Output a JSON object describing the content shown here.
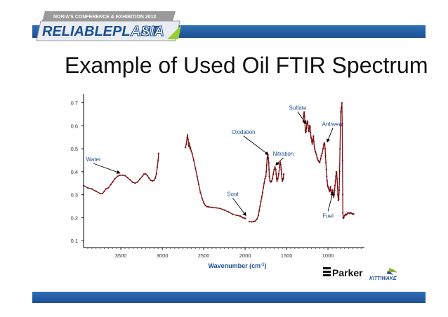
{
  "slide": {
    "title": "Example of Used Oil FTIR Spectrum",
    "banner": {
      "line1": "NORIA'S CONFERENCE & EXHIBITION 2012",
      "word1": "RELIABLEPLANT",
      "word2": "ASIA"
    },
    "logos": {
      "parker": "Parker",
      "kittiwake": "KITTIWAKE"
    },
    "colors": {
      "bar": "#2f6fb8",
      "series": "#7a0f12",
      "banner_gray": "#9a9a9a",
      "banner_blue": "#1d4f8f",
      "banner_green": "#9acd32"
    }
  },
  "chart_data": {
    "type": "line",
    "xlabel": "Wavenumber (cm",
    "xlabel_sup": "-1",
    "xlabel_close": ")",
    "xlim": [
      3950,
      560
    ],
    "ylim": [
      0.07,
      0.72
    ],
    "x_ticks": [
      3500,
      3000,
      2500,
      2000,
      1500,
      1000
    ],
    "y_ticks": [
      0.1,
      0.2,
      0.3,
      0.4,
      0.5,
      0.6,
      0.7
    ],
    "grid": false,
    "series": [
      {
        "segments": [
          [
            [
              3950,
              0.34
            ],
            [
              3900,
              0.33
            ],
            [
              3850,
              0.325
            ],
            [
              3800,
              0.315
            ],
            [
              3750,
              0.305
            ],
            [
              3720,
              0.305
            ],
            [
              3700,
              0.315
            ],
            [
              3680,
              0.325
            ],
            [
              3650,
              0.33
            ],
            [
              3620,
              0.345
            ],
            [
              3600,
              0.355
            ],
            [
              3570,
              0.37
            ],
            [
              3540,
              0.38
            ],
            [
              3510,
              0.385
            ],
            [
              3480,
              0.385
            ],
            [
              3450,
              0.383
            ],
            [
              3420,
              0.375
            ],
            [
              3390,
              0.365
            ],
            [
              3360,
              0.355
            ],
            [
              3330,
              0.35
            ],
            [
              3300,
              0.355
            ],
            [
              3270,
              0.368
            ],
            [
              3240,
              0.38
            ],
            [
              3220,
              0.39
            ],
            [
              3200,
              0.39
            ],
            [
              3180,
              0.383
            ],
            [
              3160,
              0.372
            ],
            [
              3140,
              0.363
            ],
            [
              3120,
              0.36
            ],
            [
              3100,
              0.362
            ],
            [
              3085,
              0.372
            ],
            [
              3070,
              0.392
            ],
            [
              3060,
              0.42
            ],
            [
              3050,
              0.45
            ],
            [
              3045,
              0.48
            ]
          ],
          [
            [
              2720,
              0.505
            ],
            [
              2710,
              0.52
            ],
            [
              2700,
              0.55
            ],
            [
              2695,
              0.56
            ],
            [
              2688,
              0.54
            ],
            [
              2680,
              0.51
            ],
            [
              2675,
              0.525
            ],
            [
              2670,
              0.515
            ],
            [
              2665,
              0.5
            ],
            [
              2660,
              0.505
            ],
            [
              2650,
              0.49
            ],
            [
              2640,
              0.48
            ],
            [
              2620,
              0.45
            ],
            [
              2600,
              0.415
            ],
            [
              2580,
              0.38
            ],
            [
              2560,
              0.345
            ],
            [
              2540,
              0.31
            ],
            [
              2520,
              0.285
            ],
            [
              2500,
              0.265
            ],
            [
              2480,
              0.253
            ],
            [
              2460,
              0.248
            ],
            [
              2440,
              0.247
            ],
            [
              2400,
              0.245
            ],
            [
              2350,
              0.243
            ],
            [
              2300,
              0.24
            ],
            [
              2250,
              0.233
            ],
            [
              2200,
              0.225
            ],
            [
              2150,
              0.215
            ],
            [
              2100,
              0.21
            ],
            [
              2060,
              0.207
            ],
            [
              2050,
              0.205
            ],
            [
              2030,
              0.2
            ],
            [
              2010,
              0.198
            ],
            [
              2000,
              0.197
            ]
          ],
          [
            [
              1950,
              0.183
            ],
            [
              1920,
              0.182
            ],
            [
              1900,
              0.183
            ],
            [
              1880,
              0.185
            ],
            [
              1860,
              0.192
            ],
            [
              1840,
              0.21
            ],
            [
              1830,
              0.23
            ],
            [
              1820,
              0.25
            ],
            [
              1810,
              0.27
            ],
            [
              1800,
              0.29
            ],
            [
              1790,
              0.31
            ],
            [
              1780,
              0.33
            ],
            [
              1770,
              0.35
            ],
            [
              1760,
              0.37
            ],
            [
              1750,
              0.38
            ],
            [
              1745,
              0.4
            ],
            [
              1740,
              0.43
            ],
            [
              1735,
              0.455
            ],
            [
              1730,
              0.465
            ],
            [
              1725,
              0.47
            ],
            [
              1720,
              0.46
            ],
            [
              1715,
              0.44
            ],
            [
              1712,
              0.41
            ],
            [
              1708,
              0.38
            ],
            [
              1700,
              0.36
            ],
            [
              1690,
              0.355
            ],
            [
              1680,
              0.36
            ],
            [
              1670,
              0.37
            ],
            [
              1660,
              0.39
            ],
            [
              1650,
              0.41
            ],
            [
              1640,
              0.42
            ],
            [
              1630,
              0.41
            ],
            [
              1625,
              0.39
            ],
            [
              1620,
              0.37
            ],
            [
              1615,
              0.36
            ],
            [
              1605,
              0.37
            ],
            [
              1595,
              0.39
            ],
            [
              1585,
              0.42
            ],
            [
              1580,
              0.435
            ],
            [
              1575,
              0.44
            ],
            [
              1570,
              0.43
            ],
            [
              1565,
              0.41
            ],
            [
              1560,
              0.39
            ],
            [
              1555,
              0.37
            ],
            [
              1550,
              0.36
            ],
            [
              1545,
              0.365
            ],
            [
              1540,
              0.37
            ],
            [
              1535,
              0.39
            ]
          ],
          [
            [
              1300,
              0.62
            ],
            [
              1295,
              0.64
            ],
            [
              1290,
              0.655
            ],
            [
              1286,
              0.66
            ],
            [
              1282,
              0.64
            ],
            [
              1278,
              0.61
            ],
            [
              1274,
              0.58
            ],
            [
              1270,
              0.57
            ],
            [
              1265,
              0.575
            ],
            [
              1260,
              0.59
            ],
            [
              1255,
              0.61
            ],
            [
              1250,
              0.62
            ],
            [
              1245,
              0.615
            ],
            [
              1240,
              0.6
            ],
            [
              1235,
              0.58
            ],
            [
              1230,
              0.575
            ],
            [
              1225,
              0.59
            ],
            [
              1220,
              0.6
            ],
            [
              1215,
              0.595
            ],
            [
              1210,
              0.57
            ],
            [
              1205,
              0.55
            ],
            [
              1200,
              0.545
            ],
            [
              1195,
              0.53
            ],
            [
              1190,
              0.52
            ],
            [
              1185,
              0.535
            ],
            [
              1180,
              0.54
            ],
            [
              1175,
              0.555
            ],
            [
              1170,
              0.53
            ],
            [
              1165,
              0.51
            ],
            [
              1160,
              0.5
            ],
            [
              1155,
              0.49
            ],
            [
              1150,
              0.485
            ],
            [
              1140,
              0.475
            ],
            [
              1130,
              0.46
            ],
            [
              1120,
              0.45
            ],
            [
              1110,
              0.445
            ],
            [
              1100,
              0.44
            ],
            [
              1090,
              0.455
            ],
            [
              1080,
              0.47
            ],
            [
              1070,
              0.48
            ],
            [
              1060,
              0.5
            ],
            [
              1050,
              0.52
            ],
            [
              1045,
              0.525
            ],
            [
              1040,
              0.52
            ],
            [
              1035,
              0.5
            ],
            [
              1030,
              0.47
            ],
            [
              1025,
              0.44
            ],
            [
              1020,
              0.41
            ],
            [
              1015,
              0.38
            ],
            [
              1010,
              0.36
            ],
            [
              1005,
              0.34
            ],
            [
              1000,
              0.335
            ],
            [
              995,
              0.33
            ],
            [
              990,
              0.325
            ],
            [
              985,
              0.32
            ],
            [
              980,
              0.315
            ],
            [
              975,
              0.32
            ],
            [
              970,
              0.335
            ],
            [
              965,
              0.32
            ],
            [
              960,
              0.31
            ],
            [
              955,
              0.3
            ],
            [
              950,
              0.305
            ],
            [
              945,
              0.32
            ],
            [
              940,
              0.31
            ],
            [
              935,
              0.3
            ],
            [
              930,
              0.29
            ],
            [
              925,
              0.3
            ],
            [
              920,
              0.32
            ],
            [
              915,
              0.34
            ],
            [
              910,
              0.36
            ],
            [
              905,
              0.38
            ],
            [
              900,
              0.4
            ],
            [
              895,
              0.395
            ],
            [
              890,
              0.37
            ],
            [
              885,
              0.33
            ],
            [
              880,
              0.3
            ],
            [
              875,
              0.275
            ],
            [
              870,
              0.28
            ],
            [
              865,
              0.32
            ],
            [
              860,
              0.4
            ],
            [
              855,
              0.5
            ],
            [
              850,
              0.6
            ],
            [
              845,
              0.66
            ],
            [
              840,
              0.68
            ],
            [
              835,
              0.68
            ],
            [
              832,
              0.7
            ],
            [
              828,
              0.6
            ],
            [
              825,
              0.45
            ],
            [
              822,
              0.3
            ],
            [
              820,
              0.22
            ],
            [
              817,
              0.2
            ],
            [
              813,
              0.198
            ],
            [
              810,
              0.2
            ],
            [
              800,
              0.21
            ],
            [
              790,
              0.215
            ],
            [
              780,
              0.212
            ],
            [
              770,
              0.215
            ],
            [
              760,
              0.222
            ],
            [
              750,
              0.22
            ],
            [
              740,
              0.218
            ],
            [
              730,
              0.222
            ],
            [
              720,
              0.22
            ],
            [
              710,
              0.218
            ],
            [
              700,
              0.215
            ],
            [
              690,
              0.217
            ]
          ]
        ]
      }
    ],
    "annotations": [
      {
        "text": "Water",
        "at": [
          3510,
          0.385
        ],
        "label_at": [
          3830,
          0.445
        ]
      },
      {
        "text": "Oxidation",
        "at": [
          1720,
          0.465
        ],
        "label_at": [
          2020,
          0.565
        ]
      },
      {
        "text": "Sulfate",
        "at": [
          1265,
          0.6
        ],
        "label_at": [
          1365,
          0.67
        ]
      },
      {
        "text": "Antiwear",
        "at": [
          1010,
          0.52
        ],
        "label_at": [
          940,
          0.6
        ]
      },
      {
        "text": "Nitration",
        "at": [
          1630,
          0.42
        ],
        "label_at": [
          1540,
          0.47
        ]
      },
      {
        "text": "Soot",
        "at": [
          1990,
          0.2
        ],
        "label_at": [
          2150,
          0.295
        ]
      },
      {
        "text": "Fuel",
        "at": [
          940,
          0.32
        ],
        "label_at": [
          1000,
          0.2
        ]
      }
    ]
  }
}
